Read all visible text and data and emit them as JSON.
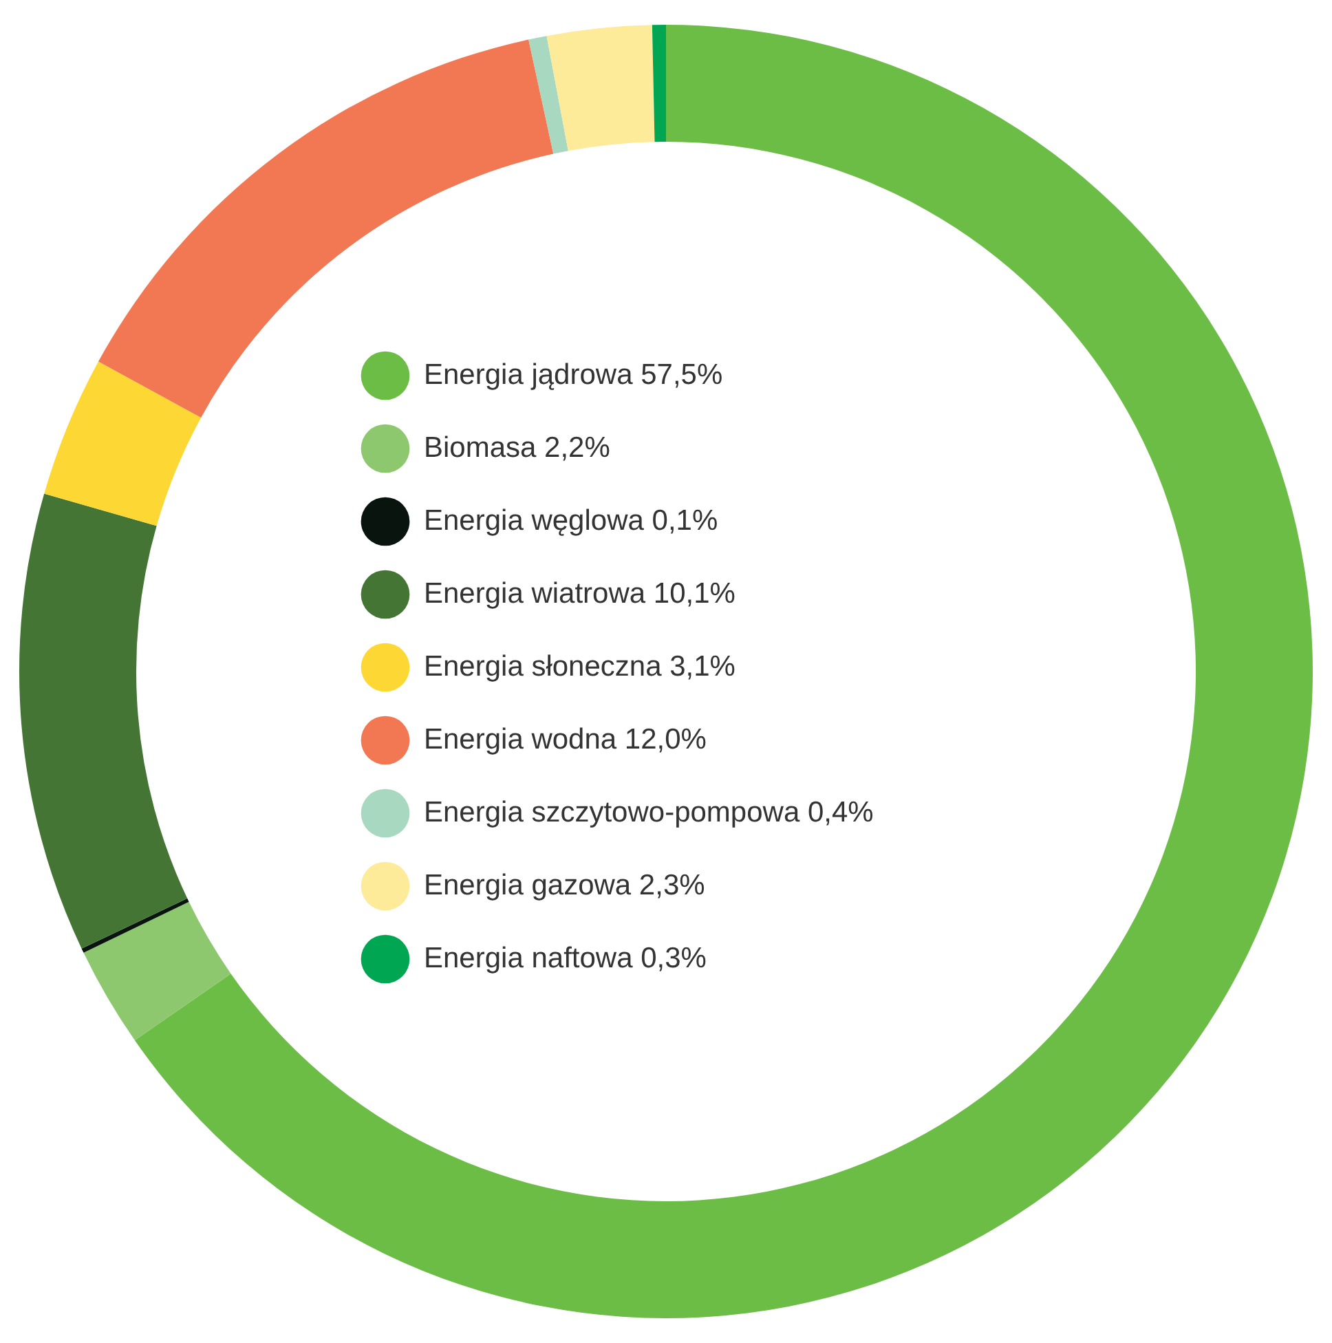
{
  "chart_data": {
    "type": "donut",
    "categories": [
      "Energia jądrowa",
      "Biomasa",
      "Energia węglowa",
      "Energia wiatrowa",
      "Energia słoneczna",
      "Energia wodna",
      "Energia szczytowo-pompowa",
      "Energia gazowa",
      "Energia naftowa"
    ],
    "values": [
      57.5,
      2.2,
      0.1,
      10.1,
      3.1,
      12.0,
      0.4,
      2.3,
      0.3
    ],
    "value_labels": [
      "57,5%",
      "2,2%",
      "0,1%",
      "10,1%",
      "3,1%",
      "12,0%",
      "0,4%",
      "2,3%",
      "0,3%"
    ],
    "colors": [
      "#6cbd45",
      "#8dc86e",
      "#0a140f",
      "#457535",
      "#fdd835",
      "#f27753",
      "#a8d8c0",
      "#fdeb9a",
      "#00a651"
    ],
    "legend": "center"
  }
}
